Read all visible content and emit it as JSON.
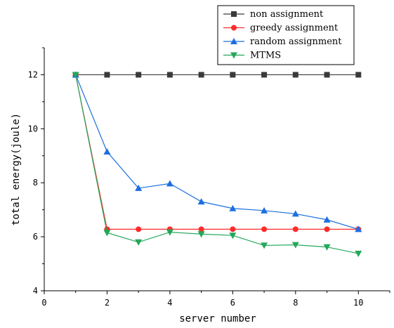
{
  "chart_data": {
    "type": "line",
    "title": "",
    "xlabel": "server number",
    "ylabel": "total energy(joule)",
    "xlim": [
      0,
      11
    ],
    "ylim": [
      4,
      13
    ],
    "xticks": [
      "0",
      "2",
      "4",
      "6",
      "8",
      "10"
    ],
    "yticks": [
      "4",
      "6",
      "8",
      "10",
      "12"
    ],
    "grid": false,
    "legend_position": "top-right",
    "x": [
      1,
      2,
      3,
      4,
      5,
      6,
      7,
      8,
      9,
      10
    ],
    "series": [
      {
        "name": "non assignment",
        "color": "#3a3a3a",
        "marker": "square",
        "values": [
          12,
          12,
          12,
          12,
          12,
          12,
          12,
          12,
          12,
          12
        ]
      },
      {
        "name": "greedy assignment",
        "color": "#ff2b2b",
        "marker": "circle",
        "values": [
          12,
          6.28,
          6.28,
          6.28,
          6.28,
          6.28,
          6.28,
          6.28,
          6.28,
          6.28
        ]
      },
      {
        "name": "random assignment",
        "color": "#1c6fe0",
        "marker": "triangle-up",
        "values": [
          12,
          9.15,
          7.8,
          7.97,
          7.3,
          7.05,
          6.97,
          6.85,
          6.63,
          6.28
        ]
      },
      {
        "name": "MTMS",
        "color": "#23a85a",
        "marker": "triangle-down",
        "values": [
          12,
          6.15,
          5.8,
          6.17,
          6.1,
          6.05,
          5.68,
          5.7,
          5.62,
          5.38
        ]
      }
    ]
  }
}
